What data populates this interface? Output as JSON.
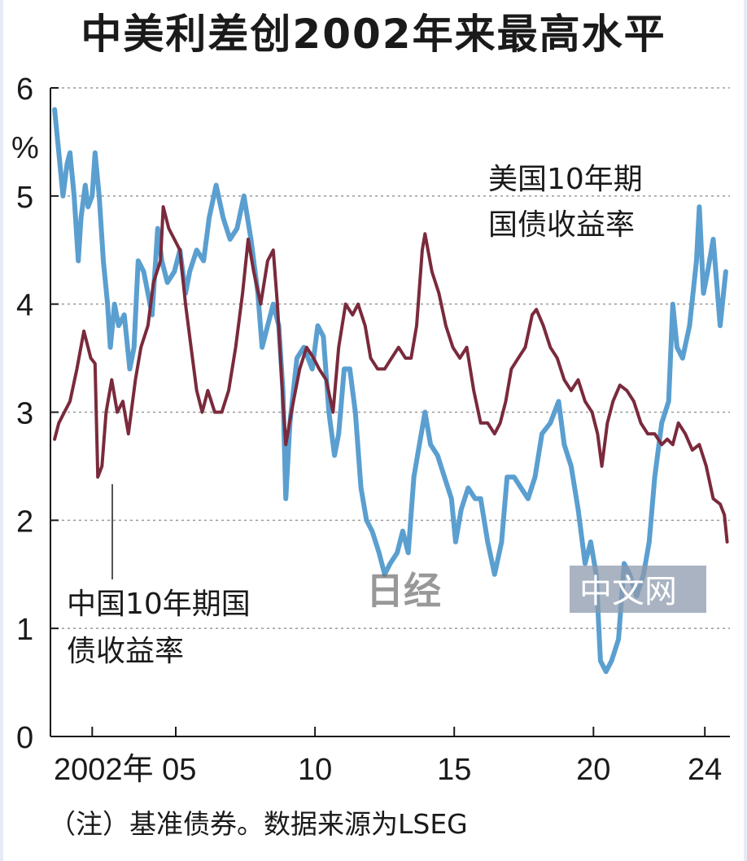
{
  "title": "中美利差创2002年来最高水平",
  "note": "（注）基准债券。数据来源为LSEG",
  "watermark": {
    "logo_text": "日经",
    "site_text": "中文网"
  },
  "chart_data": {
    "type": "line",
    "ylabel": "%",
    "ylim": [
      0,
      6
    ],
    "xlim": [
      2000.5,
      2024.9
    ],
    "y_ticks": [
      "6",
      "5",
      "4",
      "3",
      "2",
      "1",
      "0"
    ],
    "x_ticks": [
      {
        "year": 2002,
        "label": "2002年 05"
      },
      {
        "year": 2010,
        "label": "10"
      },
      {
        "year": 2015,
        "label": "15"
      },
      {
        "year": 2020,
        "label": "20"
      },
      {
        "year": 2024,
        "label": "24"
      }
    ],
    "grid": "horizontal-dotted",
    "series": [
      {
        "name": "美国10年期国债收益率",
        "label_lines": [
          "美国10年期",
          "国债收益率"
        ],
        "color": "#5a9fd0",
        "points": [
          [
            2000.65,
            5.8
          ],
          [
            2000.8,
            5.4
          ],
          [
            2000.95,
            5.0
          ],
          [
            2001.1,
            5.3
          ],
          [
            2001.2,
            5.4
          ],
          [
            2001.35,
            5.0
          ],
          [
            2001.5,
            4.4
          ],
          [
            2001.6,
            4.8
          ],
          [
            2001.75,
            5.1
          ],
          [
            2001.85,
            4.9
          ],
          [
            2002.0,
            5.0
          ],
          [
            2002.1,
            5.4
          ],
          [
            2002.25,
            5.0
          ],
          [
            2002.4,
            4.4
          ],
          [
            2002.55,
            4.0
          ],
          [
            2002.65,
            3.6
          ],
          [
            2002.8,
            4.0
          ],
          [
            2002.95,
            3.8
          ],
          [
            2003.15,
            3.9
          ],
          [
            2003.35,
            3.4
          ],
          [
            2003.5,
            3.6
          ],
          [
            2003.65,
            4.4
          ],
          [
            2003.85,
            4.3
          ],
          [
            2004.0,
            4.1
          ],
          [
            2004.15,
            3.9
          ],
          [
            2004.35,
            4.7
          ],
          [
            2004.5,
            4.4
          ],
          [
            2004.7,
            4.2
          ],
          [
            2004.95,
            4.3
          ],
          [
            2005.15,
            4.5
          ],
          [
            2005.35,
            4.1
          ],
          [
            2005.5,
            4.3
          ],
          [
            2005.75,
            4.5
          ],
          [
            2006.0,
            4.4
          ],
          [
            2006.2,
            4.8
          ],
          [
            2006.45,
            5.1
          ],
          [
            2006.7,
            4.8
          ],
          [
            2006.95,
            4.6
          ],
          [
            2007.2,
            4.7
          ],
          [
            2007.45,
            5.0
          ],
          [
            2007.7,
            4.6
          ],
          [
            2007.95,
            4.1
          ],
          [
            2008.1,
            3.6
          ],
          [
            2008.3,
            3.8
          ],
          [
            2008.5,
            4.0
          ],
          [
            2008.7,
            3.8
          ],
          [
            2008.85,
            3.2
          ],
          [
            2008.95,
            2.2
          ],
          [
            2009.1,
            2.9
          ],
          [
            2009.35,
            3.5
          ],
          [
            2009.6,
            3.6
          ],
          [
            2009.9,
            3.4
          ],
          [
            2010.1,
            3.8
          ],
          [
            2010.3,
            3.7
          ],
          [
            2010.5,
            3.0
          ],
          [
            2010.7,
            2.6
          ],
          [
            2010.85,
            2.8
          ],
          [
            2011.05,
            3.4
          ],
          [
            2011.25,
            3.4
          ],
          [
            2011.45,
            3.0
          ],
          [
            2011.65,
            2.3
          ],
          [
            2011.85,
            2.0
          ],
          [
            2012.05,
            1.9
          ],
          [
            2012.3,
            1.7
          ],
          [
            2012.5,
            1.5
          ],
          [
            2012.7,
            1.6
          ],
          [
            2012.95,
            1.7
          ],
          [
            2013.15,
            1.9
          ],
          [
            2013.35,
            1.7
          ],
          [
            2013.55,
            2.4
          ],
          [
            2013.75,
            2.7
          ],
          [
            2013.95,
            3.0
          ],
          [
            2014.15,
            2.7
          ],
          [
            2014.4,
            2.6
          ],
          [
            2014.65,
            2.4
          ],
          [
            2014.9,
            2.2
          ],
          [
            2015.05,
            1.8
          ],
          [
            2015.25,
            2.1
          ],
          [
            2015.5,
            2.3
          ],
          [
            2015.75,
            2.2
          ],
          [
            2015.95,
            2.2
          ],
          [
            2016.2,
            1.8
          ],
          [
            2016.45,
            1.5
          ],
          [
            2016.7,
            1.8
          ],
          [
            2016.9,
            2.4
          ],
          [
            2017.15,
            2.4
          ],
          [
            2017.4,
            2.3
          ],
          [
            2017.65,
            2.2
          ],
          [
            2017.9,
            2.4
          ],
          [
            2018.15,
            2.8
          ],
          [
            2018.45,
            2.9
          ],
          [
            2018.75,
            3.1
          ],
          [
            2018.95,
            2.7
          ],
          [
            2019.2,
            2.5
          ],
          [
            2019.45,
            2.1
          ],
          [
            2019.7,
            1.6
          ],
          [
            2019.9,
            1.8
          ],
          [
            2020.1,
            1.5
          ],
          [
            2020.25,
            0.7
          ],
          [
            2020.45,
            0.6
          ],
          [
            2020.65,
            0.7
          ],
          [
            2020.9,
            0.9
          ],
          [
            2021.1,
            1.6
          ],
          [
            2021.3,
            1.5
          ],
          [
            2021.55,
            1.3
          ],
          [
            2021.8,
            1.5
          ],
          [
            2022.0,
            1.8
          ],
          [
            2022.2,
            2.4
          ],
          [
            2022.45,
            2.9
          ],
          [
            2022.7,
            3.1
          ],
          [
            2022.85,
            4.0
          ],
          [
            2023.0,
            3.6
          ],
          [
            2023.2,
            3.5
          ],
          [
            2023.45,
            3.8
          ],
          [
            2023.7,
            4.4
          ],
          [
            2023.8,
            4.9
          ],
          [
            2023.95,
            4.1
          ],
          [
            2024.1,
            4.3
          ],
          [
            2024.3,
            4.6
          ],
          [
            2024.55,
            3.8
          ],
          [
            2024.75,
            4.3
          ]
        ]
      },
      {
        "name": "中国10年期国债收益率",
        "label_lines": [
          "中国10年期国",
          "债收益率"
        ],
        "color": "#7a2a3c",
        "points": [
          [
            2000.65,
            2.75
          ],
          [
            2000.8,
            2.9
          ],
          [
            2001.0,
            3.0
          ],
          [
            2001.2,
            3.1
          ],
          [
            2001.45,
            3.4
          ],
          [
            2001.7,
            3.75
          ],
          [
            2001.95,
            3.5
          ],
          [
            2002.1,
            3.45
          ],
          [
            2002.2,
            2.4
          ],
          [
            2002.35,
            2.5
          ],
          [
            2002.5,
            3.0
          ],
          [
            2002.7,
            3.3
          ],
          [
            2002.9,
            3.0
          ],
          [
            2003.1,
            3.1
          ],
          [
            2003.3,
            2.8
          ],
          [
            2003.55,
            3.3
          ],
          [
            2003.75,
            3.6
          ],
          [
            2004.0,
            3.8
          ],
          [
            2004.2,
            4.2
          ],
          [
            2004.45,
            4.4
          ],
          [
            2004.55,
            4.9
          ],
          [
            2004.75,
            4.7
          ],
          [
            2004.95,
            4.6
          ],
          [
            2005.15,
            4.5
          ],
          [
            2005.35,
            4.0
          ],
          [
            2005.55,
            3.6
          ],
          [
            2005.75,
            3.2
          ],
          [
            2005.95,
            3.0
          ],
          [
            2006.15,
            3.2
          ],
          [
            2006.4,
            3.0
          ],
          [
            2006.65,
            3.0
          ],
          [
            2006.9,
            3.2
          ],
          [
            2007.15,
            3.6
          ],
          [
            2007.4,
            4.1
          ],
          [
            2007.6,
            4.6
          ],
          [
            2007.8,
            4.3
          ],
          [
            2008.05,
            4.0
          ],
          [
            2008.3,
            4.4
          ],
          [
            2008.5,
            4.5
          ],
          [
            2008.65,
            4.0
          ],
          [
            2008.85,
            3.1
          ],
          [
            2008.95,
            2.7
          ],
          [
            2009.15,
            3.0
          ],
          [
            2009.45,
            3.4
          ],
          [
            2009.7,
            3.6
          ],
          [
            2009.95,
            3.5
          ],
          [
            2010.15,
            3.4
          ],
          [
            2010.4,
            3.3
          ],
          [
            2010.65,
            3.0
          ],
          [
            2010.85,
            3.6
          ],
          [
            2011.1,
            4.0
          ],
          [
            2011.35,
            3.9
          ],
          [
            2011.55,
            4.0
          ],
          [
            2011.8,
            3.8
          ],
          [
            2012.0,
            3.5
          ],
          [
            2012.25,
            3.4
          ],
          [
            2012.5,
            3.4
          ],
          [
            2012.75,
            3.5
          ],
          [
            2013.0,
            3.6
          ],
          [
            2013.25,
            3.5
          ],
          [
            2013.45,
            3.5
          ],
          [
            2013.65,
            3.8
          ],
          [
            2013.85,
            4.5
          ],
          [
            2013.95,
            4.65
          ],
          [
            2014.2,
            4.3
          ],
          [
            2014.45,
            4.1
          ],
          [
            2014.7,
            3.8
          ],
          [
            2014.95,
            3.6
          ],
          [
            2015.2,
            3.5
          ],
          [
            2015.45,
            3.6
          ],
          [
            2015.7,
            3.2
          ],
          [
            2015.95,
            2.9
          ],
          [
            2016.2,
            2.9
          ],
          [
            2016.45,
            2.8
          ],
          [
            2016.65,
            2.9
          ],
          [
            2016.85,
            3.1
          ],
          [
            2017.05,
            3.4
          ],
          [
            2017.3,
            3.5
          ],
          [
            2017.55,
            3.6
          ],
          [
            2017.8,
            3.9
          ],
          [
            2017.95,
            3.95
          ],
          [
            2018.2,
            3.8
          ],
          [
            2018.45,
            3.6
          ],
          [
            2018.7,
            3.5
          ],
          [
            2018.95,
            3.3
          ],
          [
            2019.2,
            3.2
          ],
          [
            2019.45,
            3.3
          ],
          [
            2019.7,
            3.1
          ],
          [
            2019.95,
            3.0
          ],
          [
            2020.15,
            2.8
          ],
          [
            2020.3,
            2.5
          ],
          [
            2020.5,
            2.9
          ],
          [
            2020.7,
            3.1
          ],
          [
            2020.95,
            3.25
          ],
          [
            2021.2,
            3.2
          ],
          [
            2021.45,
            3.1
          ],
          [
            2021.7,
            2.9
          ],
          [
            2021.95,
            2.8
          ],
          [
            2022.2,
            2.8
          ],
          [
            2022.45,
            2.7
          ],
          [
            2022.65,
            2.75
          ],
          [
            2022.85,
            2.7
          ],
          [
            2023.05,
            2.9
          ],
          [
            2023.3,
            2.8
          ],
          [
            2023.55,
            2.65
          ],
          [
            2023.8,
            2.7
          ],
          [
            2024.05,
            2.5
          ],
          [
            2024.3,
            2.2
          ],
          [
            2024.55,
            2.15
          ],
          [
            2024.7,
            2.05
          ],
          [
            2024.8,
            1.8
          ]
        ]
      }
    ]
  }
}
